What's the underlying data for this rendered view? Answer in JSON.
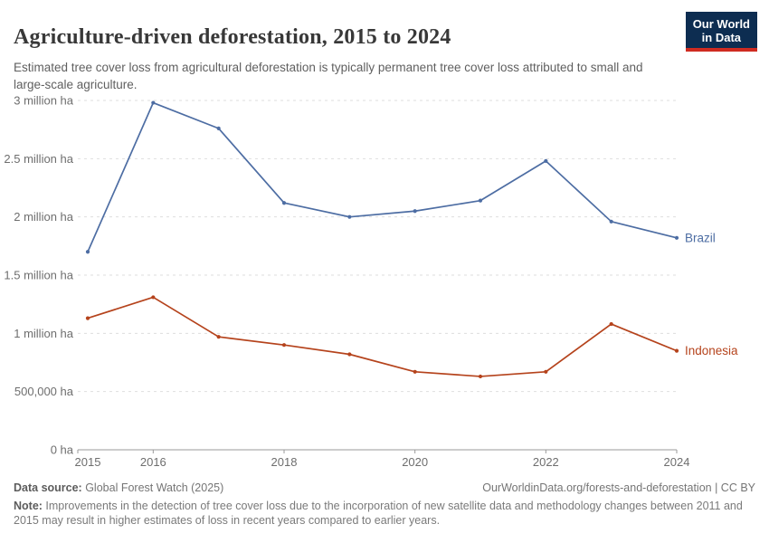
{
  "header": {
    "title": "Agriculture-driven deforestation, 2015 to 2024",
    "subtitle": "Estimated tree cover loss from agricultural deforestation is typically permanent tree cover loss attributed to small and large-scale agriculture.",
    "logo": {
      "line1": "Our World",
      "line2": "in Data"
    }
  },
  "colors": {
    "brazil": "#4d6da3",
    "indonesia": "#b5431c",
    "logo_bg": "#0d2d51",
    "logo_bar": "#cf2b21",
    "gridline": "#dedede",
    "axis": "#9a9a9a",
    "tick_label": "#6e6e6e"
  },
  "chart_data": {
    "type": "line",
    "title": "Agriculture-driven deforestation, 2015 to 2024",
    "unit": "ha",
    "x": [
      2015,
      2016,
      2017,
      2018,
      2019,
      2020,
      2021,
      2022,
      2023,
      2024
    ],
    "series": [
      {
        "name": "Brazil",
        "color": "#4d6da3",
        "values": [
          1700000,
          2980000,
          2760000,
          2120000,
          2000000,
          2050000,
          2140000,
          2480000,
          1960000,
          1820000
        ]
      },
      {
        "name": "Indonesia",
        "color": "#b5431c",
        "values": [
          1130000,
          1310000,
          970000,
          900000,
          820000,
          670000,
          630000,
          670000,
          1080000,
          850000
        ]
      }
    ],
    "ylim": [
      0,
      3000000
    ],
    "yticks": [
      {
        "value": 0,
        "label": "0 ha"
      },
      {
        "value": 500000,
        "label": "500,000 ha"
      },
      {
        "value": 1000000,
        "label": "1 million ha"
      },
      {
        "value": 1500000,
        "label": "1.5 million ha"
      },
      {
        "value": 2000000,
        "label": "2 million ha"
      },
      {
        "value": 2500000,
        "label": "2.5 million ha"
      },
      {
        "value": 3000000,
        "label": "3 million ha"
      }
    ],
    "xticks": [
      2015,
      2016,
      2018,
      2020,
      2022,
      2024
    ],
    "grid": "horizontal-dashed",
    "legend_position": "series-end-labels"
  },
  "footer": {
    "datasource_label": "Data source:",
    "datasource_value": " Global Forest Watch (2025)",
    "attribution": "OurWorldinData.org/forests-and-deforestation | CC BY",
    "note_label": "Note:",
    "note_text": " Improvements in the detection of tree cover loss due to the incorporation of new satellite data and methodology changes between 2011 and 2015 may result in higher estimates of loss in recent years compared to earlier years."
  }
}
